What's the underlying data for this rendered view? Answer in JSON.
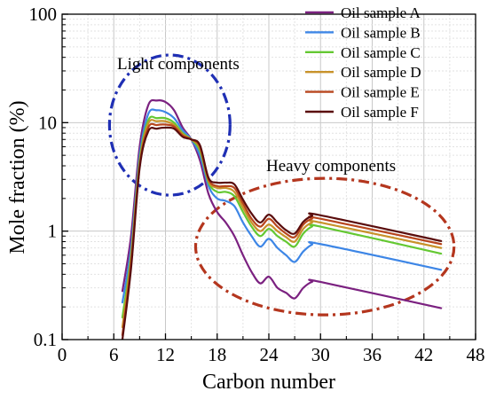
{
  "chart_data": {
    "type": "line",
    "title": "",
    "xlabel": "Carbon number",
    "ylabel": "Mole fraction (%)",
    "xlim": [
      0,
      48
    ],
    "ylim": [
      0.1,
      100
    ],
    "yscale": "log",
    "x_ticks": [
      0,
      6,
      12,
      18,
      24,
      30,
      36,
      42,
      48
    ],
    "x_tick_labels": [
      "0",
      "6",
      "12",
      "18",
      "24",
      "30",
      "36",
      "42",
      "48"
    ],
    "y_ticks": [
      0.1,
      1,
      10,
      100
    ],
    "y_tick_labels": [
      "0.1",
      "1",
      "10",
      "100"
    ],
    "grid": true,
    "legend_position": "top-right",
    "annotations": [
      {
        "text": "Light components"
      },
      {
        "text": "Heavy components"
      }
    ],
    "x": [
      7,
      8,
      9,
      10,
      11,
      12,
      13,
      14,
      15,
      16,
      17,
      18,
      19,
      20,
      21,
      22,
      23,
      24,
      25,
      26,
      27,
      28,
      29,
      30,
      44
    ],
    "series": [
      {
        "name": "Oil sample A",
        "color": "#7b2180",
        "values": [
          0.28,
          0.9,
          6.0,
          14.5,
          16.0,
          15.5,
          13.0,
          9.0,
          7.0,
          4.5,
          2.2,
          1.5,
          1.2,
          0.9,
          0.6,
          0.42,
          0.33,
          0.38,
          0.3,
          0.27,
          0.24,
          0.3,
          0.34,
          0.34,
          0.195
        ]
      },
      {
        "name": "Oil sample B",
        "color": "#3d86e6",
        "values": [
          0.22,
          0.7,
          5.0,
          12.0,
          13.0,
          12.5,
          11.0,
          8.5,
          7.0,
          5.0,
          2.6,
          2.0,
          1.9,
          1.7,
          1.2,
          0.9,
          0.72,
          0.85,
          0.7,
          0.6,
          0.52,
          0.65,
          0.75,
          0.76,
          0.44
        ]
      },
      {
        "name": "Oil sample C",
        "color": "#64c832",
        "values": [
          0.16,
          0.6,
          4.5,
          10.5,
          11.0,
          11.0,
          10.0,
          8.0,
          7.0,
          5.5,
          2.8,
          2.3,
          2.3,
          2.1,
          1.5,
          1.1,
          0.9,
          1.05,
          0.9,
          0.8,
          0.72,
          0.95,
          1.1,
          1.1,
          0.62
        ]
      },
      {
        "name": "Oil sample D",
        "color": "#c8922a",
        "values": [
          0.13,
          0.55,
          4.2,
          9.8,
          10.3,
          10.3,
          9.5,
          7.8,
          7.0,
          5.8,
          2.9,
          2.5,
          2.5,
          2.3,
          1.65,
          1.2,
          1.0,
          1.15,
          1.0,
          0.88,
          0.8,
          1.05,
          1.2,
          1.2,
          0.7
        ]
      },
      {
        "name": "Oil sample E",
        "color": "#b8461e",
        "values": [
          0.11,
          0.5,
          4.0,
          9.0,
          9.5,
          9.6,
          9.2,
          7.6,
          7.0,
          6.0,
          3.0,
          2.6,
          2.6,
          2.5,
          1.8,
          1.3,
          1.1,
          1.3,
          1.1,
          0.95,
          0.88,
          1.15,
          1.3,
          1.3,
          0.76
        ]
      },
      {
        "name": "Oil sample F",
        "color": "#5a0d0d",
        "values": [
          0.1,
          0.45,
          3.8,
          8.3,
          8.8,
          9.0,
          8.8,
          7.4,
          7.0,
          6.2,
          3.1,
          2.8,
          2.8,
          2.7,
          1.95,
          1.45,
          1.2,
          1.42,
          1.2,
          1.02,
          0.95,
          1.22,
          1.38,
          1.4,
          0.81
        ]
      }
    ]
  }
}
